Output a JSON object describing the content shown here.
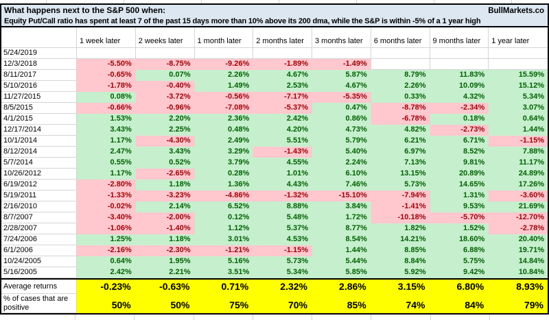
{
  "header": {
    "title": "What happens next to the S&P 500 when:",
    "brand": "BullMarkets.co",
    "subtitle": "Equity Put/Call ratio has spent at least 7 of the past 15 days more than 10% above its 200 dma, while the S&P is within -5% of a 1 year high"
  },
  "table": {
    "columns": [
      "1 week later",
      "2 weeks later",
      "1 month later",
      "2 months later",
      "3 months later",
      "6 months later",
      "9 months later",
      "1 year later"
    ],
    "rows": [
      {
        "date": "5/24/2019",
        "values": [
          "",
          "",
          "",
          "",
          "",
          "",
          "",
          ""
        ]
      },
      {
        "date": "12/3/2018",
        "values": [
          "-5.50%",
          "-8.75%",
          "-9.26%",
          "-1.89%",
          "-1.49%",
          "",
          "",
          ""
        ]
      },
      {
        "date": "8/11/2017",
        "values": [
          "-0.65%",
          "0.07%",
          "2.26%",
          "4.67%",
          "5.87%",
          "8.79%",
          "11.83%",
          "15.59%"
        ]
      },
      {
        "date": "5/10/2016",
        "values": [
          "-1.78%",
          "-0.40%",
          "1.49%",
          "2.53%",
          "4.67%",
          "2.26%",
          "10.09%",
          "15.12%"
        ]
      },
      {
        "date": "11/27/2015",
        "values": [
          "0.08%",
          "-3.72%",
          "-0.56%",
          "-7.17%",
          "-5.35%",
          "0.33%",
          "4.32%",
          "5.34%"
        ]
      },
      {
        "date": "8/5/2015",
        "values": [
          "-0.66%",
          "-0.96%",
          "-7.08%",
          "-5.37%",
          "0.47%",
          "-8.78%",
          "-2.34%",
          "3.07%"
        ]
      },
      {
        "date": "4/1/2015",
        "values": [
          "1.53%",
          "2.20%",
          "2.36%",
          "2.42%",
          "0.86%",
          "-6.78%",
          "0.18%",
          "0.64%"
        ]
      },
      {
        "date": "12/17/2014",
        "values": [
          "3.43%",
          "2.25%",
          "0.48%",
          "4.20%",
          "4.73%",
          "4.82%",
          "-2.73%",
          "1.44%"
        ]
      },
      {
        "date": "10/1/2014",
        "values": [
          "1.17%",
          "-4.30%",
          "2.49%",
          "5.51%",
          "5.79%",
          "6.21%",
          "6.71%",
          "-1.15%"
        ]
      },
      {
        "date": "8/12/2014",
        "values": [
          "2.47%",
          "3.43%",
          "3.29%",
          "-1.43%",
          "5.40%",
          "6.97%",
          "8.52%",
          "7.88%"
        ]
      },
      {
        "date": "5/7/2014",
        "values": [
          "0.55%",
          "0.52%",
          "3.79%",
          "4.55%",
          "2.24%",
          "7.13%",
          "9.81%",
          "11.17%"
        ]
      },
      {
        "date": "10/26/2012",
        "values": [
          "1.17%",
          "-2.65%",
          "0.28%",
          "1.01%",
          "6.10%",
          "13.15%",
          "20.89%",
          "24.89%"
        ]
      },
      {
        "date": "6/19/2012",
        "values": [
          "-2.80%",
          "1.18%",
          "1.36%",
          "4.43%",
          "7.46%",
          "5.73%",
          "14.65%",
          "17.26%"
        ]
      },
      {
        "date": "5/19/2011",
        "values": [
          "-1.33%",
          "-3.23%",
          "-4.86%",
          "-1.32%",
          "-15.10%",
          "-7.94%",
          "1.31%",
          "-3.60%"
        ]
      },
      {
        "date": "2/16/2010",
        "values": [
          "-0.02%",
          "2.14%",
          "6.52%",
          "8.88%",
          "3.84%",
          "-1.41%",
          "9.53%",
          "21.69%"
        ]
      },
      {
        "date": "8/7/2007",
        "values": [
          "-3.40%",
          "-2.00%",
          "0.12%",
          "5.48%",
          "1.72%",
          "-10.18%",
          "-5.70%",
          "-12.70%"
        ]
      },
      {
        "date": "2/28/2007",
        "values": [
          "-1.06%",
          "-1.40%",
          "1.12%",
          "5.37%",
          "8.77%",
          "1.82%",
          "1.52%",
          "-2.78%"
        ]
      },
      {
        "date": "7/24/2006",
        "values": [
          "1.25%",
          "1.18%",
          "3.01%",
          "4.53%",
          "8.54%",
          "14.21%",
          "18.60%",
          "20.40%"
        ]
      },
      {
        "date": "6/1/2006",
        "values": [
          "-2.16%",
          "-2.30%",
          "-1.21%",
          "-1.15%",
          "1.44%",
          "8.85%",
          "6.88%",
          "19.71%"
        ]
      },
      {
        "date": "10/24/2005",
        "values": [
          "0.64%",
          "1.95%",
          "5.16%",
          "5.73%",
          "5.44%",
          "8.84%",
          "5.75%",
          "14.84%"
        ]
      },
      {
        "date": "5/16/2005",
        "values": [
          "2.42%",
          "2.21%",
          "3.51%",
          "5.34%",
          "5.85%",
          "5.92%",
          "9.42%",
          "10.84%"
        ]
      }
    ],
    "summary": {
      "avg_label": "Average returns",
      "avg_values": [
        "-0.23%",
        "-0.63%",
        "0.71%",
        "2.32%",
        "2.86%",
        "3.15%",
        "6.80%",
        "8.93%"
      ],
      "pct_label": "% of cases that are positive",
      "pct_values": [
        "50%",
        "50%",
        "75%",
        "70%",
        "85%",
        "74%",
        "84%",
        "79%"
      ]
    }
  },
  "colors": {
    "positive_bg": "#C6EFCE",
    "positive_text": "#006100",
    "negative_bg": "#FFC7CE",
    "negative_text": "#9C0006",
    "summary_bg": "#FFFF00",
    "header_bg": "#DCE7F2",
    "gridline": "#D4D4D4"
  }
}
